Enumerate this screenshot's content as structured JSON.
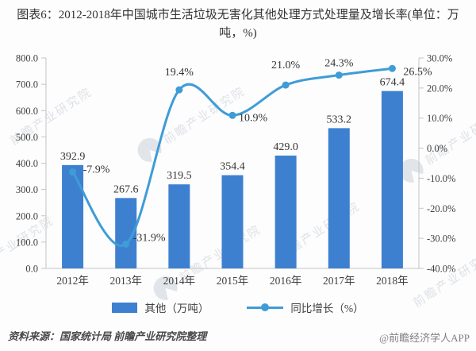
{
  "title": {
    "text": "图表6：2012-2018年中国城市生活垃圾无害化其他处理方式处理量及增长率(单位：万吨，%)"
  },
  "chart_data": {
    "type": "combo-bar-line",
    "categories": [
      "2012年",
      "2013年",
      "2014年",
      "2015年",
      "2016年",
      "2017年",
      "2018年"
    ],
    "series": [
      {
        "name": "其他（万吨）",
        "type": "bar",
        "axis": "left",
        "color": "#3e80d0",
        "values": [
          392.9,
          267.6,
          319.5,
          354.4,
          429.0,
          533.2,
          674.4
        ],
        "labels": [
          "392.9",
          "267.6",
          "319.5",
          "354.4",
          "429.0",
          "533.2",
          "674.4"
        ]
      },
      {
        "name": "同比增长（%）",
        "type": "line",
        "axis": "right",
        "smooth": true,
        "color": "#3f9cd6",
        "values": [
          -7.9,
          -31.9,
          19.4,
          10.9,
          21.0,
          24.3,
          26.5
        ],
        "labels": [
          "-7.9%",
          "-31.9%",
          "19.4%",
          "10.9%",
          "21.0%",
          "24.3%",
          "26.5%"
        ],
        "label_pos": [
          [
            13,
            1,
            "start"
          ],
          [
            9,
            -4,
            "start"
          ],
          [
            0,
            -18,
            "middle"
          ],
          [
            8,
            7,
            "start"
          ],
          [
            0,
            -21,
            "middle"
          ],
          [
            0,
            -11,
            "middle"
          ],
          [
            14,
            8,
            "start"
          ]
        ]
      }
    ],
    "left_axis": {
      "min": 0,
      "max": 800,
      "step": 100,
      "labels": [
        "800.0",
        "700.0",
        "600.0",
        "500.0",
        "400.0",
        "300.0",
        "200.0",
        "100.0",
        "0.0"
      ]
    },
    "right_axis": {
      "min": -40,
      "max": 30,
      "step": 10,
      "labels": [
        "30.0%",
        "20.0%",
        "10.0%",
        "0.0%",
        "-10.0%",
        "-20.0%",
        "-30.0%",
        "-40.0%"
      ]
    },
    "grid": false,
    "legend_position": "bottom",
    "title": "图表6：2012-2018年中国城市生活垃圾无害化其他处理方式处理量及增长率(单位：万吨，%)"
  },
  "legend": {
    "items": [
      {
        "label": "其他（万吨）",
        "swatch": "bar"
      },
      {
        "label": "同比增长（%）",
        "swatch": "line-marker"
      }
    ]
  },
  "footer": {
    "source": "资料来源：国家统计局 前瞻产业研究院整理",
    "credit": "@前瞻经济学人APP"
  },
  "watermark": {
    "text": "前瞻产业研究院"
  }
}
